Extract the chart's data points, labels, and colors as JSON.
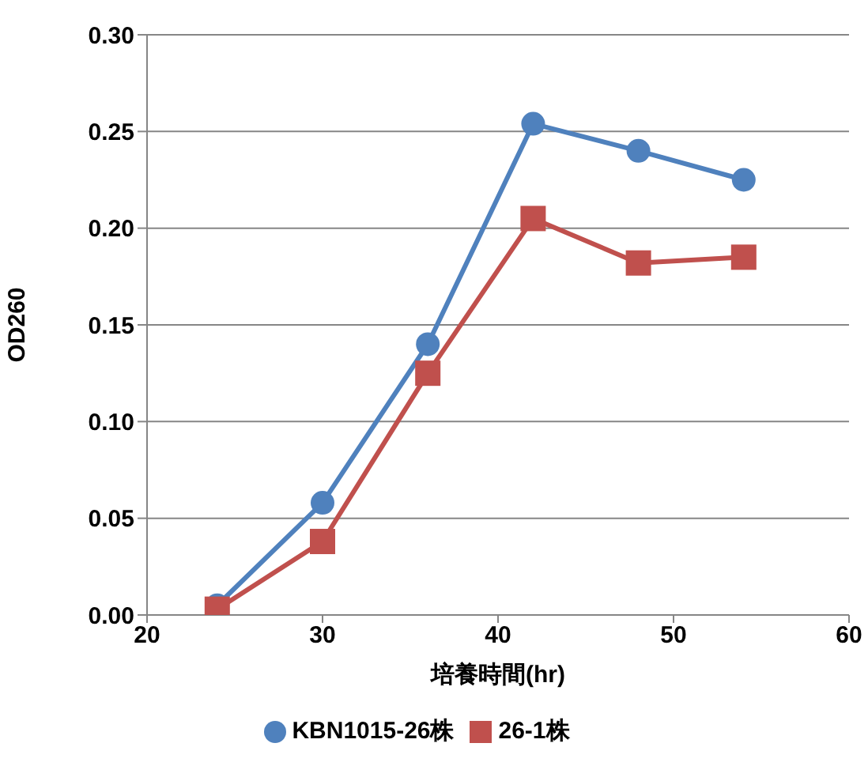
{
  "chart_data": {
    "type": "line",
    "xlabel": "培養時間(hr)",
    "ylabel": "OD260",
    "x": [
      24,
      30,
      36,
      42,
      48,
      54
    ],
    "series": [
      {
        "name": "KBN1015-26株",
        "color": "#4f81bd",
        "marker": "circle",
        "values": [
          0.005,
          0.058,
          0.14,
          0.254,
          0.24,
          0.225
        ]
      },
      {
        "name": "26-1株",
        "color": "#c0504d",
        "marker": "square",
        "values": [
          0.003,
          0.038,
          0.125,
          0.205,
          0.182,
          0.185
        ]
      }
    ],
    "xlim": [
      20,
      60
    ],
    "xticks": [
      20,
      30,
      40,
      50,
      60
    ],
    "ylim": [
      0,
      0.3
    ],
    "yticks": [
      {
        "value": 0,
        "label": "0.00"
      },
      0.05,
      {
        "value": 0.1,
        "label": "0.10"
      },
      0.15,
      {
        "value": 0.2,
        "label": "0.20"
      },
      0.25,
      {
        "value": 0.3,
        "label": "0.30"
      }
    ],
    "grid": "y",
    "legend": "bottom"
  }
}
